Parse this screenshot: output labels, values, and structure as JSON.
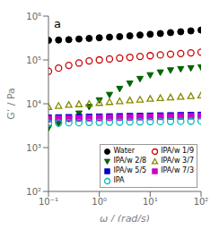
{
  "chart_data": {
    "type": "scatter",
    "title": "a",
    "x_label": "ω / (rad/s)",
    "y_label": "G’ / Pa",
    "log": true,
    "grid": false,
    "legend": "lower right",
    "xlim": [
      0.1,
      100
    ],
    "ylim": [
      100,
      1000000
    ],
    "xticks": [
      {
        "value": 0.1,
        "label": "10⁻¹"
      },
      {
        "value": 1,
        "label": "10⁰"
      },
      {
        "value": 10,
        "label": "10¹"
      },
      {
        "value": 100,
        "label": "10²"
      }
    ],
    "yticks": [
      {
        "value": 100,
        "label": "10²"
      },
      {
        "value": 1000,
        "label": "10³"
      },
      {
        "value": 10000,
        "label": "10⁴"
      },
      {
        "value": 100000,
        "label": "10⁵"
      },
      {
        "value": 1000000,
        "label": "10⁶"
      }
    ],
    "x": [
      0.1,
      0.158,
      0.251,
      0.398,
      0.631,
      1.0,
      1.585,
      2.512,
      3.981,
      6.31,
      10.0,
      15.85,
      25.12,
      39.81,
      63.1,
      100.0
    ],
    "series": [
      {
        "name": "Water",
        "color": "black",
        "marker": "circle",
        "values": [
          280000.0,
          285000.0,
          290000.0,
          300000.0,
          310000.0,
          320000.0,
          330000.0,
          340000.0,
          355000.0,
          370000.0,
          385000.0,
          400000.0,
          420000.0,
          440000.0,
          460000.0,
          480000.0
        ]
      },
      {
        "name": "IPA/w 1/9",
        "color": "#cc0000",
        "marker": "circle-open",
        "values": [
          55000.0,
          65000.0,
          75000.0,
          85000.0,
          95000.0,
          100000.0,
          105000.0,
          110000.0,
          115000.0,
          120000.0,
          125000.0,
          130000.0,
          135000.0,
          140000.0,
          145000.0,
          150000.0
        ]
      },
      {
        "name": "IPA/w 2/8",
        "color": "#006600",
        "marker": "triangle-down",
        "values": [
          2800.0,
          3500.0,
          4500.0,
          6000.0,
          8500.0,
          12000.0,
          16000.0,
          22000.0,
          29000.0,
          37000.0,
          45000.0,
          52000.0,
          58000.0,
          62000.0,
          65000.0,
          68000.0
        ]
      },
      {
        "name": "IPA/w 3/7",
        "color": "#888800",
        "marker": "triangle-open",
        "values": [
          8500.0,
          9000.0,
          9500.0,
          9800.0,
          10000.0,
          10500.0,
          11000.0,
          11500.0,
          12000.0,
          12500.0,
          13000.0,
          13500.0,
          14000.0,
          14500.0,
          15000.0,
          15500.0
        ]
      },
      {
        "name": "IPA/w 5/5",
        "color": "#0000cc",
        "marker": "square",
        "values": [
          4800,
          4850,
          4900,
          4950,
          5000,
          5050,
          5100,
          5150,
          5200,
          5250,
          5300,
          5350,
          5400,
          5450,
          5500,
          5550
        ]
      },
      {
        "name": "IPA/w 7/3",
        "color": "#cc00cc",
        "marker": "square",
        "values": [
          4500,
          4550,
          4600,
          4650,
          4700,
          4750,
          4800,
          4850,
          4900,
          4950,
          5000,
          5050,
          5100,
          5150,
          5200,
          5250
        ]
      },
      {
        "name": "IPA",
        "color": "#00bbbb",
        "marker": "circle-open",
        "values": [
          3600,
          3650,
          3700,
          3700,
          3750,
          3780,
          3800,
          3820,
          3850,
          3870,
          3900,
          3920,
          3950,
          3970,
          4000,
          4020
        ]
      }
    ]
  }
}
